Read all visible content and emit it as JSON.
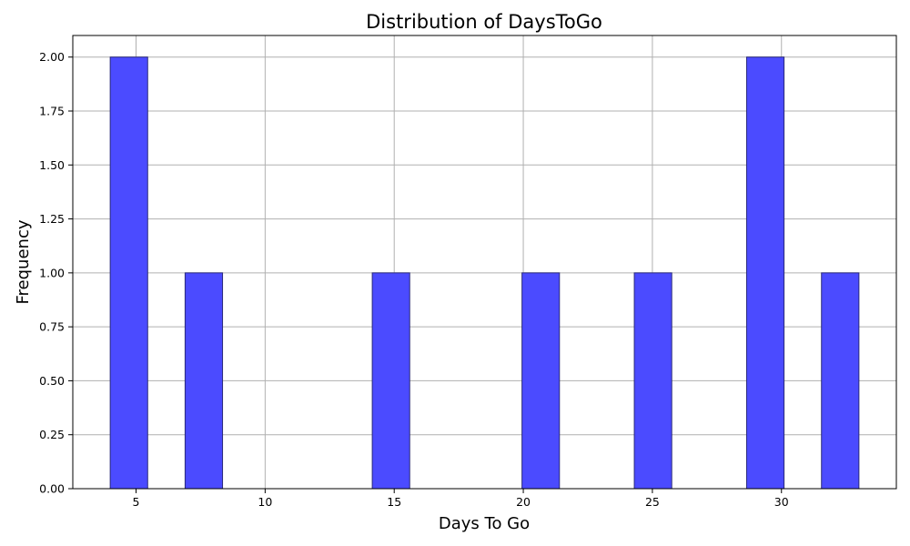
{
  "chart_data": {
    "type": "bar",
    "title": "Distribution of DaysToGo",
    "xlabel": "Days To Go",
    "ylabel": "Frequency",
    "xlim": [
      2.55,
      34.45
    ],
    "ylim": [
      0,
      2.1
    ],
    "grid": true,
    "bin_width": 1.45,
    "x_ticks": [
      {
        "value": 5,
        "label": "5"
      },
      {
        "value": 10,
        "label": "10"
      },
      {
        "value": 15,
        "label": "15"
      },
      {
        "value": 20,
        "label": "20"
      },
      {
        "value": 25,
        "label": "25"
      },
      {
        "value": 30,
        "label": "30"
      }
    ],
    "y_ticks": [
      {
        "value": 0,
        "label": "0.00"
      },
      {
        "value": 0.25,
        "label": "0.25"
      },
      {
        "value": 0.5,
        "label": "0.50"
      },
      {
        "value": 0.75,
        "label": "0.75"
      },
      {
        "value": 1,
        "label": "1.00"
      },
      {
        "value": 1.25,
        "label": "1.25"
      },
      {
        "value": 1.5,
        "label": "1.50"
      },
      {
        "value": 1.75,
        "label": "1.75"
      },
      {
        "value": 2,
        "label": "2.00"
      }
    ],
    "bins": [
      {
        "start": 4.0,
        "end": 5.45,
        "count": 2
      },
      {
        "start": 6.9,
        "end": 8.35,
        "count": 1
      },
      {
        "start": 14.15,
        "end": 15.6,
        "count": 1
      },
      {
        "start": 19.95,
        "end": 21.4,
        "count": 1
      },
      {
        "start": 24.3,
        "end": 25.75,
        "count": 1
      },
      {
        "start": 28.65,
        "end": 30.1,
        "count": 2
      },
      {
        "start": 31.55,
        "end": 33.0,
        "count": 1
      }
    ],
    "colors": {
      "bar_fill": "#4b4bff",
      "bar_edge": "#2a2a7a",
      "grid": "#b0b0b0",
      "axis": "#000000"
    }
  }
}
